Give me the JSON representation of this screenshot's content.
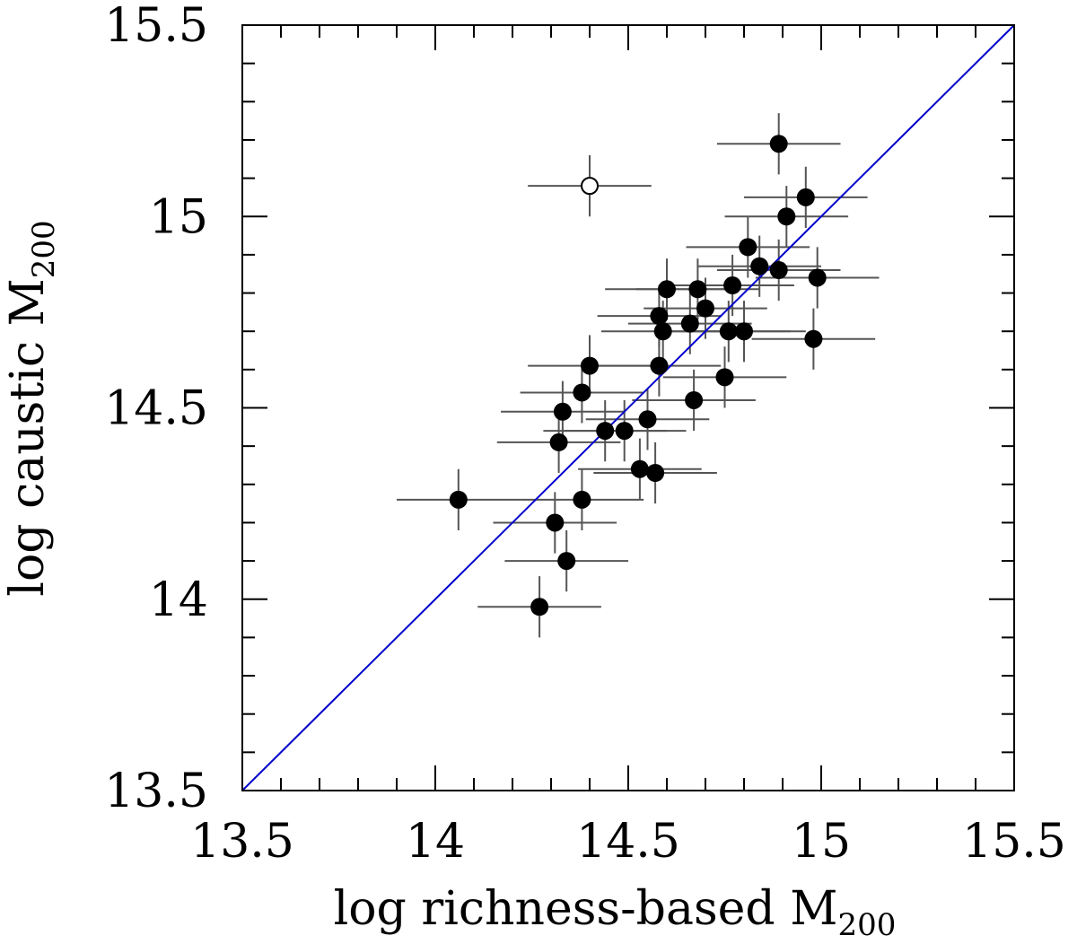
{
  "chart_data": {
    "type": "scatter",
    "xlabel": "log richness-based M",
    "xlabel_subscript": "200",
    "ylabel": "log caustic M",
    "ylabel_subscript": "200",
    "xlim": [
      13.5,
      15.5
    ],
    "ylim": [
      13.5,
      15.5
    ],
    "xticks": [
      "13.5",
      "14",
      "14.5",
      "15",
      "15.5"
    ],
    "yticks": [
      "13.5",
      "14",
      "14.5",
      "15",
      "15.5"
    ],
    "grid": false,
    "reference_line": {
      "from": [
        13.5,
        13.5
      ],
      "to": [
        15.5,
        15.5
      ],
      "color": "#0000cc"
    },
    "marker_color": "#000000",
    "errorbar_color": "#555555",
    "points": [
      {
        "x": 14.06,
        "y": 14.26,
        "xerr": 0.16,
        "yerr": 0.08,
        "filled": true
      },
      {
        "x": 14.27,
        "y": 13.98,
        "xerr": 0.16,
        "yerr": 0.08,
        "filled": true
      },
      {
        "x": 14.31,
        "y": 14.2,
        "xerr": 0.16,
        "yerr": 0.08,
        "filled": true
      },
      {
        "x": 14.34,
        "y": 14.1,
        "xerr": 0.16,
        "yerr": 0.08,
        "filled": true
      },
      {
        "x": 14.32,
        "y": 14.41,
        "xerr": 0.16,
        "yerr": 0.08,
        "filled": true
      },
      {
        "x": 14.33,
        "y": 14.49,
        "xerr": 0.16,
        "yerr": 0.08,
        "filled": true
      },
      {
        "x": 14.38,
        "y": 14.26,
        "xerr": 0.16,
        "yerr": 0.08,
        "filled": true
      },
      {
        "x": 14.38,
        "y": 14.54,
        "xerr": 0.16,
        "yerr": 0.08,
        "filled": true
      },
      {
        "x": 14.4,
        "y": 14.61,
        "xerr": 0.16,
        "yerr": 0.08,
        "filled": true
      },
      {
        "x": 14.4,
        "y": 15.08,
        "xerr": 0.16,
        "yerr": 0.08,
        "filled": false
      },
      {
        "x": 14.44,
        "y": 14.44,
        "xerr": 0.16,
        "yerr": 0.08,
        "filled": true
      },
      {
        "x": 14.49,
        "y": 14.44,
        "xerr": 0.16,
        "yerr": 0.08,
        "filled": true
      },
      {
        "x": 14.53,
        "y": 14.34,
        "xerr": 0.16,
        "yerr": 0.08,
        "filled": true
      },
      {
        "x": 14.55,
        "y": 14.47,
        "xerr": 0.16,
        "yerr": 0.08,
        "filled": true
      },
      {
        "x": 14.57,
        "y": 14.33,
        "xerr": 0.16,
        "yerr": 0.08,
        "filled": true
      },
      {
        "x": 14.58,
        "y": 14.61,
        "xerr": 0.16,
        "yerr": 0.08,
        "filled": true
      },
      {
        "x": 14.58,
        "y": 14.74,
        "xerr": 0.16,
        "yerr": 0.08,
        "filled": true
      },
      {
        "x": 14.59,
        "y": 14.7,
        "xerr": 0.16,
        "yerr": 0.08,
        "filled": true
      },
      {
        "x": 14.6,
        "y": 14.81,
        "xerr": 0.16,
        "yerr": 0.08,
        "filled": true
      },
      {
        "x": 14.66,
        "y": 14.72,
        "xerr": 0.16,
        "yerr": 0.08,
        "filled": true
      },
      {
        "x": 14.67,
        "y": 14.52,
        "xerr": 0.16,
        "yerr": 0.08,
        "filled": true
      },
      {
        "x": 14.68,
        "y": 14.81,
        "xerr": 0.16,
        "yerr": 0.08,
        "filled": true
      },
      {
        "x": 14.7,
        "y": 14.76,
        "xerr": 0.16,
        "yerr": 0.08,
        "filled": true
      },
      {
        "x": 14.75,
        "y": 14.58,
        "xerr": 0.16,
        "yerr": 0.08,
        "filled": true
      },
      {
        "x": 14.76,
        "y": 14.7,
        "xerr": 0.16,
        "yerr": 0.08,
        "filled": true
      },
      {
        "x": 14.77,
        "y": 14.82,
        "xerr": 0.16,
        "yerr": 0.08,
        "filled": true
      },
      {
        "x": 14.8,
        "y": 14.7,
        "xerr": 0.16,
        "yerr": 0.08,
        "filled": true
      },
      {
        "x": 14.81,
        "y": 14.92,
        "xerr": 0.16,
        "yerr": 0.08,
        "filled": true
      },
      {
        "x": 14.84,
        "y": 14.87,
        "xerr": 0.16,
        "yerr": 0.08,
        "filled": true
      },
      {
        "x": 14.89,
        "y": 15.19,
        "xerr": 0.16,
        "yerr": 0.08,
        "filled": true
      },
      {
        "x": 14.89,
        "y": 14.86,
        "xerr": 0.16,
        "yerr": 0.08,
        "filled": true
      },
      {
        "x": 14.91,
        "y": 15.0,
        "xerr": 0.16,
        "yerr": 0.08,
        "filled": true
      },
      {
        "x": 14.96,
        "y": 15.05,
        "xerr": 0.16,
        "yerr": 0.08,
        "filled": true
      },
      {
        "x": 14.98,
        "y": 14.68,
        "xerr": 0.16,
        "yerr": 0.08,
        "filled": true
      },
      {
        "x": 14.99,
        "y": 14.84,
        "xerr": 0.16,
        "yerr": 0.08,
        "filled": true
      }
    ]
  }
}
